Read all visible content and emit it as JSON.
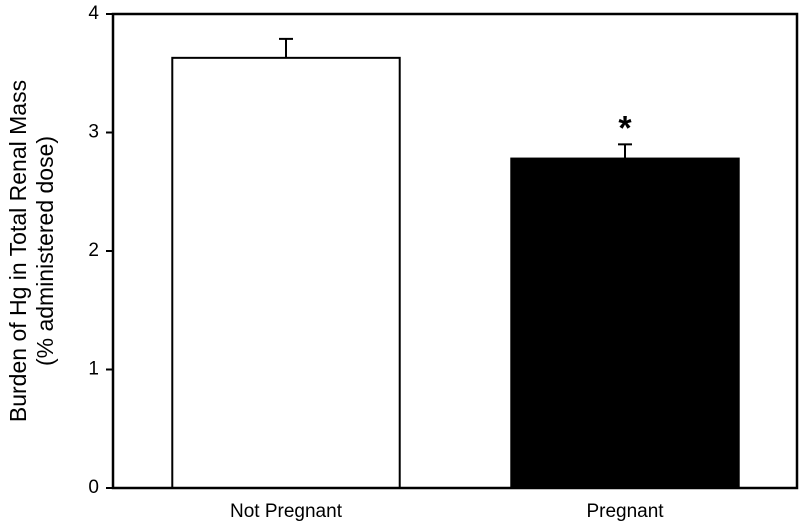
{
  "chart_data": {
    "type": "bar",
    "ylabel": [
      "Burden of Hg in Total Renal Mass",
      "(% administered dose)"
    ],
    "categories": [
      "Not Pregnant",
      "Pregnant"
    ],
    "values": [
      3.63,
      2.78
    ],
    "errors": [
      0.16,
      0.12
    ],
    "colors": [
      "#ffffff",
      "#000000"
    ],
    "significance_labels": [
      null,
      "*"
    ],
    "ylim": [
      0,
      4
    ],
    "yticks": [
      0,
      1,
      2,
      3,
      4
    ],
    "grid": false
  }
}
